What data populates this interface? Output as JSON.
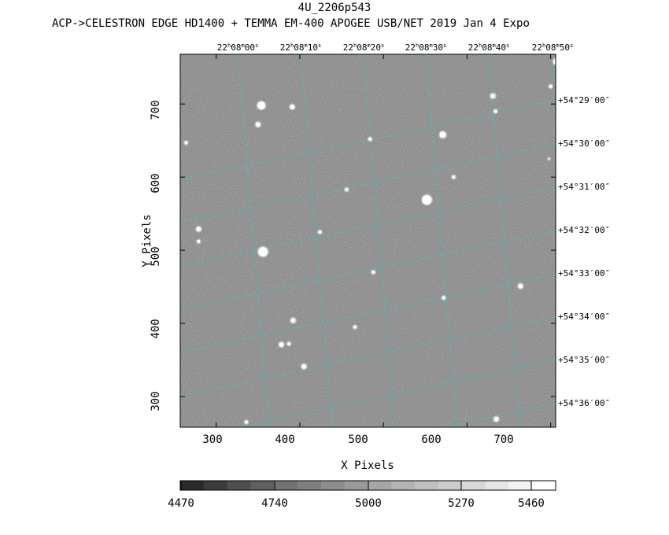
{
  "header": {
    "title": "4U_2206p543",
    "subtitle": "ACP->CELESTRON EDGE HD1400 + TEMMA EM-400 APOGEE USB/NET   2019 Jan  4    Expo"
  },
  "axes": {
    "ylabel": "Y Pixels",
    "xlabel": "X Pixels",
    "xticks": [
      "300",
      "400",
      "500",
      "600",
      "700"
    ],
    "yticks": [
      "300",
      "400",
      "500",
      "600",
      "700"
    ],
    "xrange": [
      257,
      706
    ],
    "yrange": [
      258,
      768
    ]
  },
  "ra_labels": [
    {
      "h": "22",
      "m": "08",
      "s": "00"
    },
    {
      "h": "22",
      "m": "08",
      "s": "10"
    },
    {
      "h": "22",
      "m": "08",
      "s": "20"
    },
    {
      "h": "22",
      "m": "08",
      "s": "30"
    },
    {
      "h": "22",
      "m": "08",
      "s": "40"
    },
    {
      "h": "22",
      "m": "08",
      "s": "50"
    }
  ],
  "dec_labels": [
    "+54°29′00″",
    "+54°30′00″",
    "+54°31′00″",
    "+54°32′00″",
    "+54°33′00″",
    "+54°34′00″",
    "+54°35′00″",
    "+54°36′00″"
  ],
  "colorbar": {
    "labels": [
      "4470",
      "4740",
      "5000",
      "5270",
      "5460"
    ],
    "shades": [
      "#2a2a2a",
      "#3c3c3c",
      "#4e4e4e",
      "#606060",
      "#727272",
      "#7e7e7e",
      "#8c8c8c",
      "#999999",
      "#a6a6a6",
      "#b3b3b3",
      "#c0c0c0",
      "#cccccc",
      "#d9d9d9",
      "#e6e6e6",
      "#f2f2f2",
      "#ffffff"
    ]
  },
  "colors": {
    "grid": "#33c6c6",
    "background_sky": "#7c7c7c"
  },
  "stars": [
    {
      "x": 354,
      "y": 698,
      "r": 5
    },
    {
      "x": 391,
      "y": 696,
      "r": 3
    },
    {
      "x": 350,
      "y": 672,
      "r": 3
    },
    {
      "x": 631,
      "y": 711,
      "r": 3
    },
    {
      "x": 707,
      "y": 758,
      "r": 4
    },
    {
      "x": 700,
      "y": 724,
      "r": 2
    },
    {
      "x": 571,
      "y": 658,
      "r": 4
    },
    {
      "x": 484,
      "y": 652,
      "r": 2
    },
    {
      "x": 552,
      "y": 569,
      "r": 6
    },
    {
      "x": 279,
      "y": 529,
      "r": 3
    },
    {
      "x": 279,
      "y": 512,
      "r": 2
    },
    {
      "x": 356,
      "y": 498,
      "r": 6
    },
    {
      "x": 424,
      "y": 525,
      "r": 2
    },
    {
      "x": 488,
      "y": 470,
      "r": 2
    },
    {
      "x": 664,
      "y": 451,
      "r": 3
    },
    {
      "x": 757,
      "y": 447,
      "r": 5
    },
    {
      "x": 572,
      "y": 435,
      "r": 2
    },
    {
      "x": 392,
      "y": 404,
      "r": 3
    },
    {
      "x": 466,
      "y": 395,
      "r": 2
    },
    {
      "x": 718,
      "y": 417,
      "r": 2
    },
    {
      "x": 387,
      "y": 372,
      "r": 2
    },
    {
      "x": 378,
      "y": 371,
      "r": 3
    },
    {
      "x": 405,
      "y": 341,
      "r": 3
    },
    {
      "x": 760,
      "y": 409,
      "r": 3
    },
    {
      "x": 738,
      "y": 335,
      "r": 2
    },
    {
      "x": 757,
      "y": 292,
      "r": 2
    },
    {
      "x": 635,
      "y": 269,
      "r": 3
    },
    {
      "x": 711,
      "y": 261,
      "r": 4
    },
    {
      "x": 336,
      "y": 265,
      "r": 2
    },
    {
      "x": 584,
      "y": 600,
      "r": 2
    },
    {
      "x": 456,
      "y": 583,
      "r": 2
    },
    {
      "x": 634,
      "y": 690,
      "r": 2
    },
    {
      "x": 264,
      "y": 647,
      "r": 2
    },
    {
      "x": 698,
      "y": 625,
      "r": 1
    },
    {
      "x": 718,
      "y": 297,
      "r": 2
    }
  ]
}
